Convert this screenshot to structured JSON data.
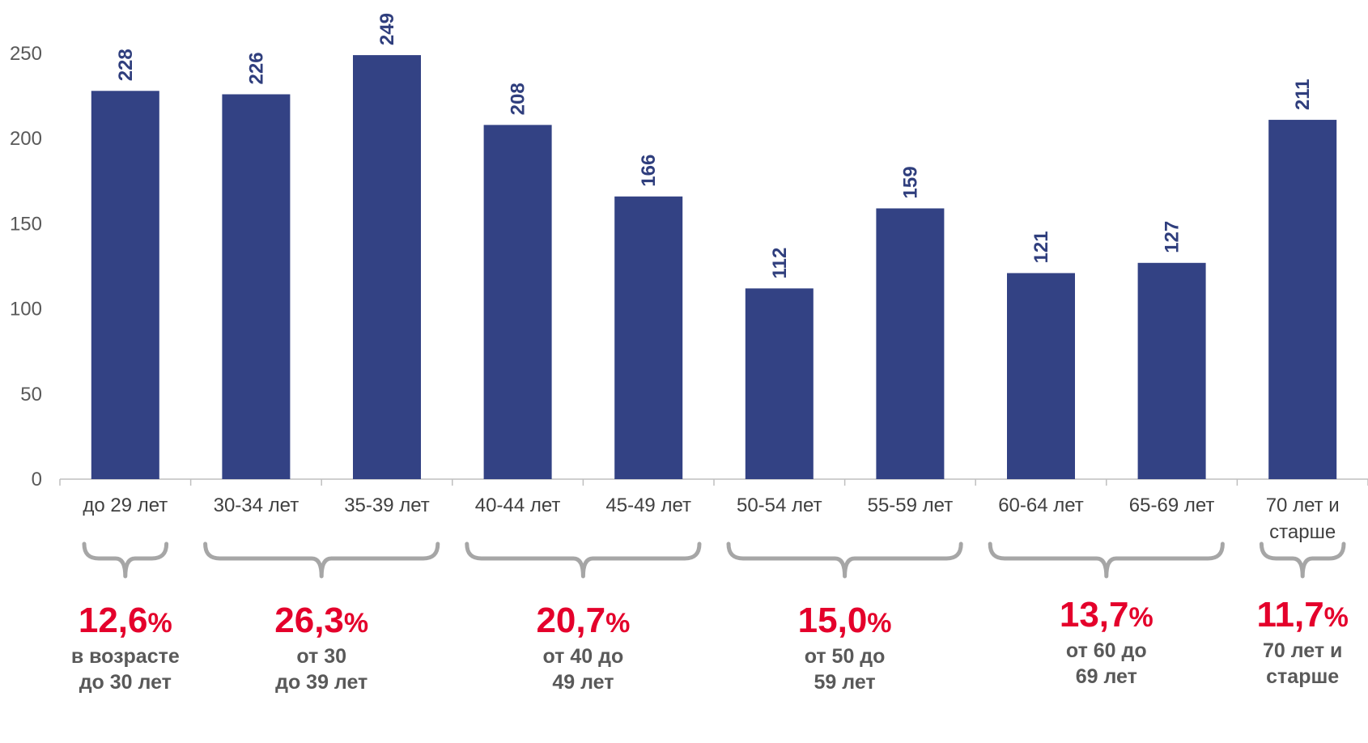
{
  "chart_data": {
    "type": "bar",
    "title": "",
    "xlabel": "",
    "ylabel": "",
    "ylim": [
      0,
      270
    ],
    "yticks": [
      0,
      50,
      100,
      150,
      200,
      250
    ],
    "categories": [
      [
        "до 29 лет"
      ],
      [
        "30-34 лет"
      ],
      [
        "35-39 лет"
      ],
      [
        "40-44 лет"
      ],
      [
        "45-49 лет"
      ],
      [
        "50-54 лет"
      ],
      [
        "55-59 лет"
      ],
      [
        "60-64 лет"
      ],
      [
        "65-69 лет"
      ],
      [
        "70 лет и",
        "старше"
      ]
    ],
    "values": [
      228,
      226,
      249,
      208,
      166,
      112,
      159,
      121,
      127,
      211
    ],
    "bar_color": "#334284",
    "grid": false,
    "legend": "none"
  },
  "groups": [
    {
      "covers": [
        0,
        0
      ],
      "percent": "12,6",
      "sign": "%",
      "lines": [
        "в возрасте",
        "до 30 лет"
      ]
    },
    {
      "covers": [
        1,
        2
      ],
      "percent": "26,3",
      "sign": "%",
      "lines": [
        "от 30",
        "до 39 лет"
      ]
    },
    {
      "covers": [
        3,
        4
      ],
      "percent": "20,7",
      "sign": "%",
      "lines": [
        "от 40 до",
        "49 лет"
      ]
    },
    {
      "covers": [
        5,
        6
      ],
      "percent": "15,0",
      "sign": "%",
      "lines": [
        "от 50 до",
        "59 лет"
      ]
    },
    {
      "covers": [
        7,
        8
      ],
      "percent": "13,7",
      "sign": "%",
      "lines": [
        "от 60 до",
        "69 лет"
      ]
    },
    {
      "covers": [
        9,
        9
      ],
      "percent": "11,7",
      "sign": "%",
      "lines": [
        "70 лет и",
        "старше"
      ]
    }
  ],
  "colors": {
    "accent": "#e4002b",
    "bars": "#334284",
    "brace": "#a6a6a6",
    "text": "#595959"
  }
}
